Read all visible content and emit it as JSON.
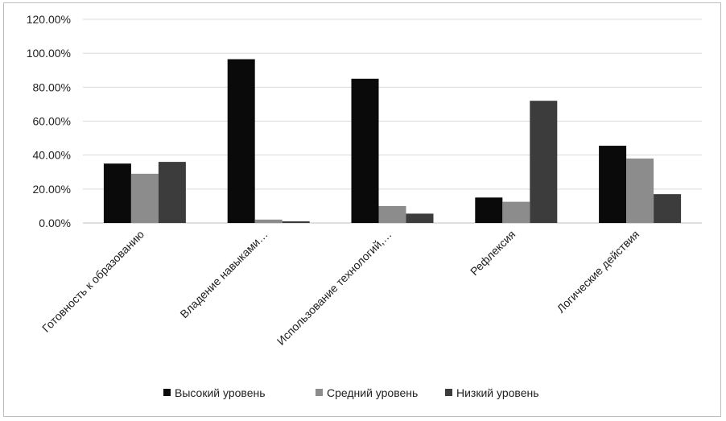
{
  "chart_data": {
    "type": "bar",
    "title": "",
    "xlabel": "",
    "ylabel": "",
    "ylim": [
      0,
      1.2
    ],
    "y_ticks": [
      "0.00%",
      "20.00%",
      "40.00%",
      "60.00%",
      "80.00%",
      "100.00%",
      "120.00%"
    ],
    "y_tick_values": [
      0,
      0.2,
      0.4,
      0.6,
      0.8,
      1.0,
      1.2
    ],
    "grid": true,
    "legend_position": "bottom",
    "categories": [
      "Готовность к образованию",
      "Владение навыками…",
      "Использование технологий,…",
      "Рефлексия",
      "Логические действия"
    ],
    "series": [
      {
        "name": "Высокий уровень",
        "color": "#0a0a0a",
        "values": [
          0.35,
          0.965,
          0.85,
          0.15,
          0.455
        ]
      },
      {
        "name": "Средний уровень",
        "color": "#8c8c8c",
        "values": [
          0.29,
          0.02,
          0.1,
          0.125,
          0.38
        ]
      },
      {
        "name": "Низкий уровень",
        "color": "#3c3c3c",
        "values": [
          0.36,
          0.01,
          0.055,
          0.72,
          0.17
        ]
      }
    ]
  }
}
